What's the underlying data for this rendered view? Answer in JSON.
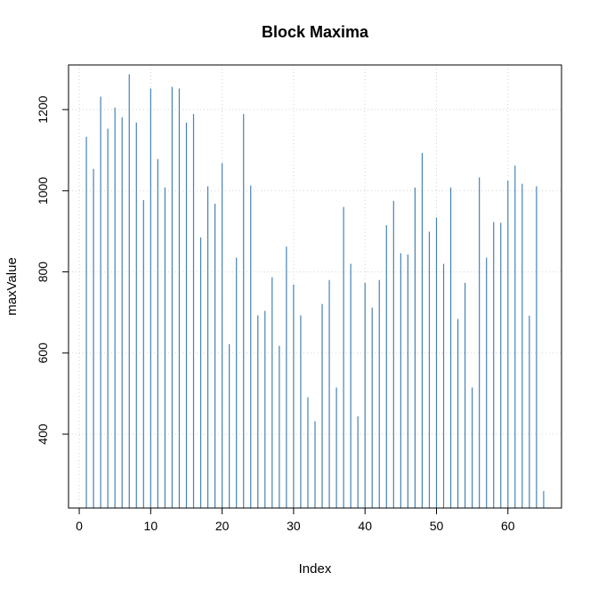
{
  "chart_data": {
    "type": "bar",
    "title": "Block Maxima",
    "xlabel": "Index",
    "ylabel": "maxValue",
    "xlim": [
      -1.5,
      67.5
    ],
    "ylim": [
      218,
      1310
    ],
    "xticks": [
      0,
      10,
      20,
      30,
      40,
      50,
      60
    ],
    "yticks": [
      400,
      600,
      800,
      1000,
      1200
    ],
    "grid": true,
    "bar_color": "#4682b4",
    "x": [
      1,
      2,
      3,
      4,
      5,
      6,
      7,
      8,
      9,
      10,
      11,
      12,
      13,
      14,
      15,
      16,
      17,
      18,
      19,
      20,
      21,
      22,
      23,
      24,
      25,
      26,
      27,
      28,
      29,
      30,
      31,
      32,
      33,
      34,
      35,
      36,
      37,
      38,
      39,
      40,
      41,
      42,
      43,
      44,
      45,
      46,
      47,
      48,
      49,
      50,
      51,
      52,
      53,
      54,
      55,
      56,
      57,
      58,
      59,
      60,
      61,
      62,
      63,
      64,
      65
    ],
    "values": [
      1133,
      1054,
      1232,
      1153,
      1205,
      1181,
      1287,
      1168,
      977,
      1252,
      1078,
      1008,
      1256,
      1252,
      1168,
      1189,
      885,
      1011,
      968,
      1068,
      622,
      835,
      1189,
      1013,
      693,
      704,
      787,
      618,
      862,
      769,
      693,
      491,
      432,
      721,
      780,
      515,
      960,
      820,
      444,
      773,
      712,
      780,
      915,
      975,
      846,
      843,
      1008,
      1093,
      899,
      934,
      820,
      1008,
      684,
      773,
      515,
      1033,
      835,
      923,
      921,
      1025,
      1062,
      1017,
      692,
      1011,
      260
    ],
    "baseline": 218
  }
}
